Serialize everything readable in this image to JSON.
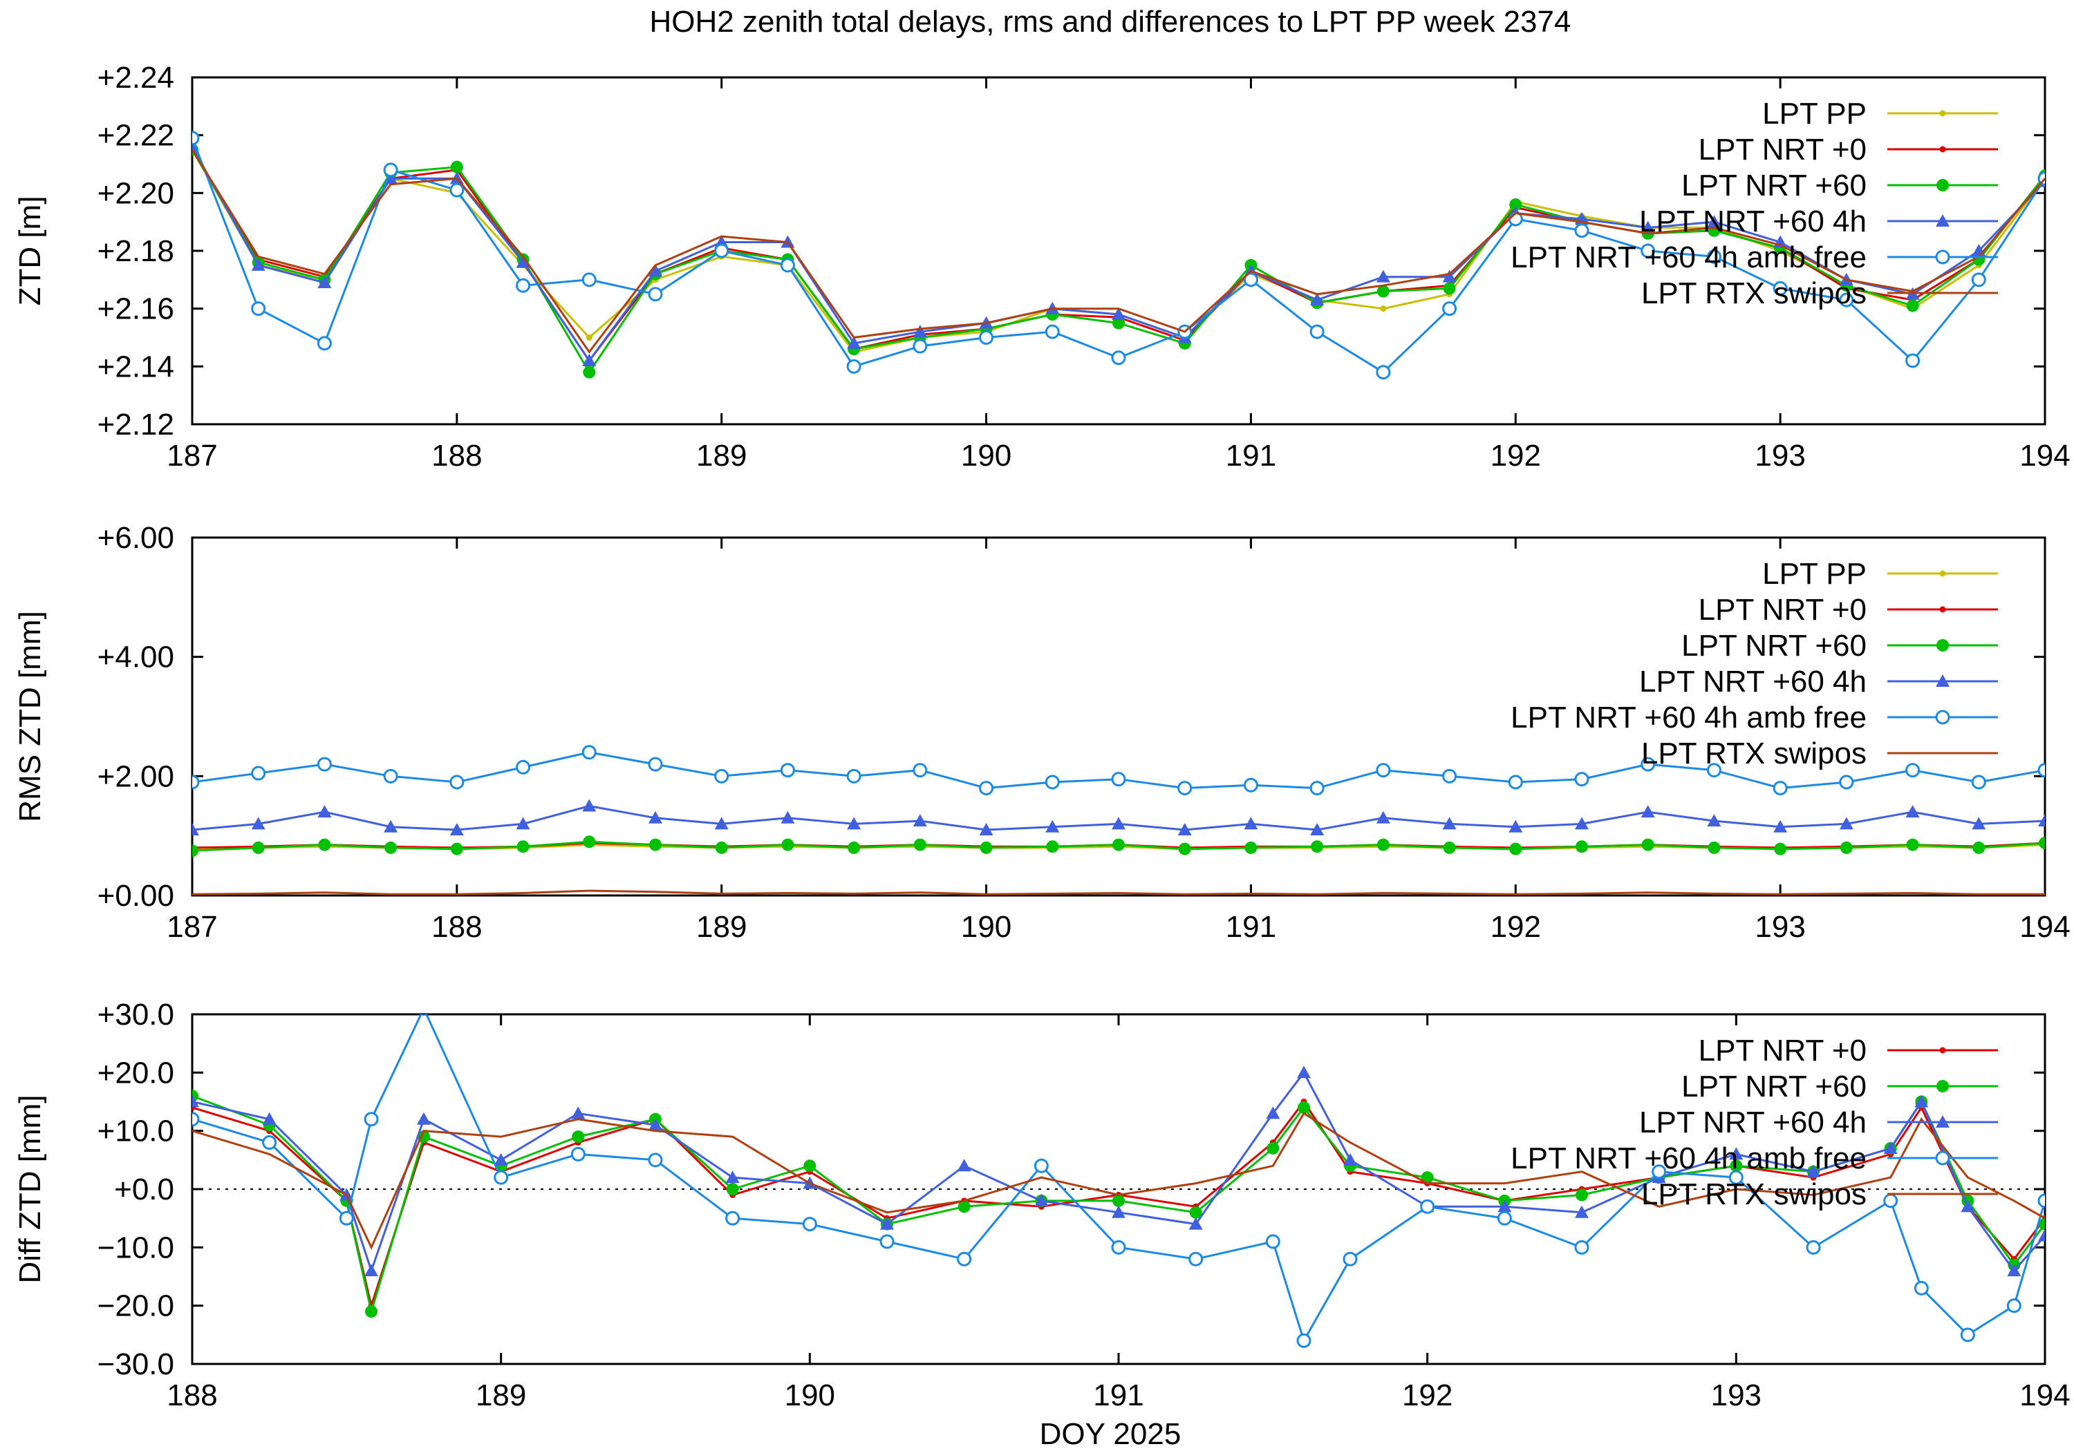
{
  "figure": {
    "title": "HOH2 zenith total delays, rms and differences to LPT PP week 2374",
    "xlabel": "DOY 2025"
  },
  "series_styles": [
    {
      "name": "LPT PP",
      "color": "#c8c000",
      "marker": "smalldot"
    },
    {
      "name": "LPT NRT +0",
      "color": "#e00000",
      "marker": "smalldot"
    },
    {
      "name": "LPT NRT +60",
      "color": "#00c000",
      "marker": "dot"
    },
    {
      "name": "LPT NRT +60 4h",
      "color": "#4060e0",
      "marker": "triangle"
    },
    {
      "name": "LPT NRT +60 4h amb free",
      "color": "#1a8ae6",
      "marker": "circle"
    },
    {
      "name": "LPT RTX swipos",
      "color": "#b04010",
      "marker": "none"
    }
  ],
  "chart_data": [
    {
      "type": "line",
      "ylabel": "ZTD [m]",
      "xlim": [
        187,
        194
      ],
      "ylim": [
        2.12,
        2.24
      ],
      "xticks": [
        "187",
        "188",
        "189",
        "190",
        "191",
        "192",
        "193",
        "194"
      ],
      "yticks": [
        "+2.12",
        "+2.14",
        "+2.16",
        "+2.18",
        "+2.20",
        "+2.22",
        "+2.24"
      ],
      "legend": [
        "LPT PP",
        "LPT NRT +0",
        "LPT NRT +60",
        "LPT NRT +60 4h",
        "LPT NRT +60 4h amb free",
        "LPT RTX swipos"
      ],
      "legend_position": "top-right",
      "x": [
        187.0,
        187.25,
        187.5,
        187.75,
        188.0,
        188.25,
        188.5,
        188.75,
        189.0,
        189.25,
        189.5,
        189.75,
        190.0,
        190.25,
        190.5,
        190.75,
        191.0,
        191.25,
        191.5,
        191.75,
        192.0,
        192.25,
        192.5,
        192.75,
        193.0,
        193.25,
        193.5,
        193.75,
        194.0
      ],
      "series": [
        {
          "name": "LPT PP",
          "values": [
            2.215,
            2.175,
            2.17,
            2.205,
            2.2,
            2.175,
            2.15,
            2.17,
            2.178,
            2.175,
            2.145,
            2.15,
            2.152,
            2.16,
            2.158,
            2.15,
            2.172,
            2.163,
            2.16,
            2.165,
            2.197,
            2.192,
            2.188,
            2.188,
            2.18,
            2.168,
            2.16,
            2.175,
            2.205
          ]
        },
        {
          "name": "LPT NRT +0",
          "values": [
            2.215,
            2.177,
            2.171,
            2.205,
            2.208,
            2.176,
            2.142,
            2.172,
            2.181,
            2.177,
            2.146,
            2.151,
            2.153,
            2.158,
            2.157,
            2.149,
            2.173,
            2.162,
            2.166,
            2.168,
            2.195,
            2.19,
            2.186,
            2.187,
            2.181,
            2.167,
            2.163,
            2.177,
            2.206
          ]
        },
        {
          "name": "LPT NRT +60",
          "values": [
            2.215,
            2.176,
            2.17,
            2.207,
            2.209,
            2.177,
            2.138,
            2.172,
            2.18,
            2.177,
            2.146,
            2.15,
            2.153,
            2.158,
            2.155,
            2.148,
            2.175,
            2.162,
            2.166,
            2.167,
            2.196,
            2.19,
            2.186,
            2.187,
            2.181,
            2.168,
            2.161,
            2.177,
            2.206
          ]
        },
        {
          "name": "LPT NRT +60 4h",
          "values": [
            2.216,
            2.175,
            2.169,
            2.205,
            2.205,
            2.176,
            2.142,
            2.173,
            2.183,
            2.183,
            2.148,
            2.152,
            2.155,
            2.16,
            2.158,
            2.15,
            2.173,
            2.163,
            2.171,
            2.171,
            2.193,
            2.191,
            2.188,
            2.19,
            2.183,
            2.17,
            2.165,
            2.18,
            2.204
          ]
        },
        {
          "name": "LPT NRT +60 4h amb free",
          "values": [
            2.219,
            2.16,
            2.148,
            2.208,
            2.201,
            2.168,
            2.17,
            2.165,
            2.18,
            2.175,
            2.14,
            2.147,
            2.15,
            2.152,
            2.143,
            2.152,
            2.17,
            2.152,
            2.138,
            2.16,
            2.191,
            2.187,
            2.18,
            2.178,
            2.167,
            2.163,
            2.142,
            2.17,
            2.205
          ]
        },
        {
          "name": "LPT RTX swipos",
          "values": [
            2.215,
            2.178,
            2.172,
            2.203,
            2.205,
            2.178,
            2.145,
            2.175,
            2.185,
            2.183,
            2.15,
            2.153,
            2.155,
            2.16,
            2.16,
            2.152,
            2.173,
            2.165,
            2.168,
            2.172,
            2.193,
            2.19,
            2.186,
            2.188,
            2.182,
            2.17,
            2.166,
            2.178,
            2.205
          ]
        }
      ]
    },
    {
      "type": "line",
      "ylabel": "RMS ZTD [mm]",
      "xlim": [
        187,
        194
      ],
      "ylim": [
        0,
        6
      ],
      "xticks": [
        "187",
        "188",
        "189",
        "190",
        "191",
        "192",
        "193",
        "194"
      ],
      "yticks": [
        "+0.00",
        "+2.00",
        "+4.00",
        "+6.00"
      ],
      "legend": [
        "LPT PP",
        "LPT NRT +0",
        "LPT NRT +60",
        "LPT NRT +60 4h",
        "LPT NRT +60 4h amb free",
        "LPT RTX swipos"
      ],
      "legend_position": "top-right",
      "x": [
        187.0,
        187.25,
        187.5,
        187.75,
        188.0,
        188.25,
        188.5,
        188.75,
        189.0,
        189.25,
        189.5,
        189.75,
        190.0,
        190.25,
        190.5,
        190.75,
        191.0,
        191.25,
        191.5,
        191.75,
        192.0,
        192.25,
        192.5,
        192.75,
        193.0,
        193.25,
        193.5,
        193.75,
        194.0
      ],
      "series": [
        {
          "name": "LPT PP",
          "values": [
            0.78,
            0.8,
            0.82,
            0.8,
            0.78,
            0.8,
            0.85,
            0.82,
            0.8,
            0.82,
            0.8,
            0.82,
            0.8,
            0.8,
            0.82,
            0.78,
            0.8,
            0.8,
            0.82,
            0.8,
            0.78,
            0.8,
            0.82,
            0.8,
            0.78,
            0.8,
            0.82,
            0.8,
            0.85
          ]
        },
        {
          "name": "LPT NRT +0",
          "values": [
            0.8,
            0.82,
            0.85,
            0.82,
            0.8,
            0.82,
            0.88,
            0.85,
            0.82,
            0.85,
            0.82,
            0.85,
            0.82,
            0.82,
            0.85,
            0.8,
            0.82,
            0.82,
            0.85,
            0.82,
            0.8,
            0.82,
            0.85,
            0.82,
            0.8,
            0.82,
            0.85,
            0.82,
            0.88
          ]
        },
        {
          "name": "LPT NRT +60",
          "values": [
            0.75,
            0.8,
            0.85,
            0.8,
            0.78,
            0.82,
            0.9,
            0.85,
            0.8,
            0.85,
            0.8,
            0.85,
            0.8,
            0.82,
            0.85,
            0.78,
            0.8,
            0.82,
            0.85,
            0.8,
            0.78,
            0.82,
            0.85,
            0.8,
            0.78,
            0.8,
            0.85,
            0.8,
            0.88
          ]
        },
        {
          "name": "LPT NRT +60 4h",
          "values": [
            1.1,
            1.2,
            1.4,
            1.15,
            1.1,
            1.2,
            1.5,
            1.3,
            1.2,
            1.3,
            1.2,
            1.25,
            1.1,
            1.15,
            1.2,
            1.1,
            1.2,
            1.1,
            1.3,
            1.2,
            1.15,
            1.2,
            1.4,
            1.25,
            1.15,
            1.2,
            1.4,
            1.2,
            1.25
          ]
        },
        {
          "name": "LPT NRT +60 4h amb free",
          "values": [
            1.9,
            2.05,
            2.2,
            2.0,
            1.9,
            2.15,
            2.4,
            2.2,
            2.0,
            2.1,
            2.0,
            2.1,
            1.8,
            1.9,
            1.95,
            1.8,
            1.85,
            1.8,
            2.1,
            2.0,
            1.9,
            1.95,
            2.2,
            2.1,
            1.8,
            1.9,
            2.1,
            1.9,
            2.1
          ]
        },
        {
          "name": "LPT RTX swipos",
          "values": [
            0.02,
            0.03,
            0.05,
            0.02,
            0.02,
            0.04,
            0.08,
            0.06,
            0.03,
            0.04,
            0.03,
            0.05,
            0.02,
            0.03,
            0.04,
            0.02,
            0.03,
            0.02,
            0.04,
            0.03,
            0.02,
            0.03,
            0.05,
            0.03,
            0.02,
            0.03,
            0.04,
            0.02,
            0.02
          ]
        }
      ]
    },
    {
      "type": "line",
      "ylabel": "Diff ZTD [mm]",
      "xlim": [
        188,
        194
      ],
      "ylim": [
        -30,
        30
      ],
      "xticks": [
        "188",
        "189",
        "190",
        "191",
        "192",
        "193",
        "194"
      ],
      "yticks": [
        "−30.0",
        "−20.0",
        "−10.0",
        "+0.0",
        "+10.0",
        "+20.0",
        "+30.0"
      ],
      "legend": [
        "LPT NRT +0",
        "LPT NRT +60",
        "LPT NRT +60 4h",
        "LPT NRT +60 4h amb free",
        "LPT RTX swipos"
      ],
      "legend_position": "top-right",
      "x": [
        188.0,
        188.25,
        188.5,
        188.58,
        188.75,
        189.0,
        189.25,
        189.5,
        189.75,
        190.0,
        190.25,
        190.5,
        190.75,
        191.0,
        191.25,
        191.5,
        191.6,
        191.75,
        192.0,
        192.25,
        192.5,
        192.75,
        193.0,
        193.25,
        193.5,
        193.6,
        193.75,
        193.9,
        194.0
      ],
      "series": [
        {
          "name": "LPT NRT +0",
          "values": [
            14,
            10,
            -2,
            -20,
            8,
            3,
            8,
            12,
            -1,
            3,
            -5,
            -2,
            -3,
            -1,
            -3,
            8,
            15,
            3,
            1,
            -2,
            0,
            2,
            4,
            2,
            6,
            14,
            -3,
            -12,
            -5
          ]
        },
        {
          "name": "LPT NRT +60",
          "values": [
            16,
            11,
            -2,
            -21,
            9,
            4,
            9,
            12,
            0,
            4,
            -6,
            -3,
            -2,
            -2,
            -4,
            7,
            14,
            4,
            2,
            -2,
            -1,
            2,
            4,
            3,
            7,
            15,
            -2,
            -13,
            -6
          ]
        },
        {
          "name": "LPT NRT +60 4h",
          "values": [
            15,
            12,
            -1,
            -14,
            12,
            5,
            13,
            11,
            2,
            1,
            -6,
            4,
            -2,
            -4,
            -6,
            13,
            20,
            5,
            -3,
            -3,
            -4,
            2,
            6,
            3,
            7,
            15,
            -3,
            -14,
            -8
          ]
        },
        {
          "name": "LPT NRT +60 4h amb free",
          "values": [
            12,
            8,
            -5,
            12,
            31,
            2,
            6,
            5,
            -5,
            -6,
            -9,
            -12,
            4,
            -10,
            -12,
            -9,
            -26,
            -12,
            -3,
            -5,
            -10,
            3,
            2,
            -10,
            -2,
            -17,
            -25,
            -20,
            -2
          ]
        },
        {
          "name": "LPT RTX swipos",
          "values": [
            10,
            6,
            -1,
            -10,
            10,
            9,
            12,
            10,
            9,
            1,
            -4,
            -2,
            2,
            -1,
            1,
            4,
            13,
            8,
            1,
            1,
            3,
            -3,
            0,
            -1,
            2,
            12,
            2,
            -2,
            -5
          ]
        }
      ]
    }
  ]
}
